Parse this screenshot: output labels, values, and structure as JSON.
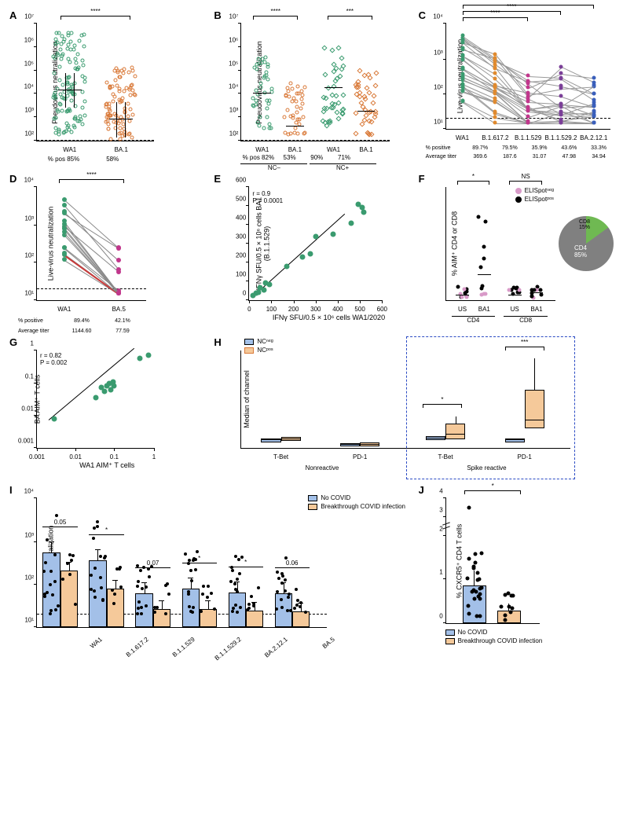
{
  "colors": {
    "green": "#3a9b6f",
    "orange": "#d97938",
    "red": "#c83a3a",
    "magenta": "#c1378c",
    "purple": "#7b3f98",
    "blue": "#3a5fbb",
    "darkorange": "#e08a2e",
    "lightblue": "#a3c0e8",
    "lightorange": "#f5c99a",
    "black": "#000000",
    "grey": "#888888",
    "piegreen": "#6fb952",
    "piegrey": "#808080",
    "pinkdot": "#d89ac8"
  },
  "panelA": {
    "label": "A",
    "ylabel": "Pseudovirus neutralization",
    "yticks": [
      "10²",
      "10³",
      "10⁴",
      "10⁵",
      "10⁶",
      "10⁷"
    ],
    "dashed_y": "10²",
    "groups": [
      "WA1",
      "BA.1"
    ],
    "bottom_line1": "% pos 85%",
    "bottom_line2": "58%",
    "sig": "****"
  },
  "panelB": {
    "label": "B",
    "ylabel": "Pseudovirus neutralization",
    "yticks": [
      "10²",
      "10³",
      "10⁴",
      "10⁵",
      "10⁶",
      "10⁷"
    ],
    "groups": [
      "WA1",
      "BA.1",
      "WA1",
      "BA.1"
    ],
    "bottom_labels": [
      "% pos 82%",
      "53%",
      "90%",
      "71%"
    ],
    "group_brackets": [
      "NC–",
      "NC+"
    ],
    "sig": [
      "****",
      "***"
    ]
  },
  "panelC": {
    "label": "C",
    "ylabel": "Live-virus neutralization",
    "yticks": [
      "10¹",
      "10²",
      "10³",
      "10⁴"
    ],
    "groups": [
      "WA1",
      "B.1.617.2",
      "B.1.1.529",
      "B.1.1.529.2",
      "BA.2.12.1"
    ],
    "bottom_pos_label": "% positive",
    "bottom_pos": [
      "89.7%",
      "79.5%",
      "35.9%",
      "43.6%",
      "33.3%"
    ],
    "bottom_titer_label": "Average titer",
    "bottom_titer": [
      "369.6",
      "187.6",
      "31.07",
      "47.98",
      "34.94"
    ],
    "sig": "****"
  },
  "panelD": {
    "label": "D",
    "ylabel": "Live-virus neutralization",
    "yticks": [
      "10¹",
      "10²",
      "10³",
      "10⁴"
    ],
    "groups": [
      "WA1",
      "BA.5"
    ],
    "bottom_pos_label": "% positive",
    "bottom_pos": [
      "89.4%",
      "42.1%"
    ],
    "bottom_titer_label": "Average titer",
    "bottom_titer": [
      "1144.60",
      "77.59"
    ],
    "sig": "****"
  },
  "panelE": {
    "label": "E",
    "ylabel_line1": "IFNγ SFU/0.5 × 10⁶ cells BA1",
    "ylabel_line2": "(B.1.1.529)",
    "xlabel": "IFNγ SFU/0.5 × 10⁶ cells WA1/2020",
    "yticks": [
      "0",
      "100",
      "200",
      "300",
      "400",
      "500",
      "600"
    ],
    "xticks": [
      "0",
      "100",
      "200",
      "300",
      "400",
      "500",
      "600"
    ],
    "stats": "r = 0.9\nP = 0.0001"
  },
  "panelF": {
    "label": "F",
    "ylabel": "% AIM⁺ CD4 or CD8",
    "groups": [
      "US",
      "BA1",
      "US",
      "BA1"
    ],
    "brackets": [
      "CD4",
      "CD8"
    ],
    "legend": [
      {
        "label": "ELISpotⁿᵉᵍ",
        "color": "pinkdot"
      },
      {
        "label": "ELISpotᵖᵒˢ",
        "color": "black"
      }
    ],
    "sig": [
      "*",
      "NS"
    ],
    "pie": {
      "cd8_label": "CD8\n15%",
      "cd4_label": "CD4\n85%"
    }
  },
  "panelG": {
    "label": "G",
    "ylabel": "BA AIM⁺ T cells",
    "xlabel": "WA1 AIM⁺ T cells",
    "yticks": [
      "0.001",
      "0.01",
      "0.1",
      "1"
    ],
    "xticks": [
      "0.001",
      "0.01",
      "0.1",
      "1"
    ],
    "stats": "r = 0.82\nP = 0.002"
  },
  "panelH": {
    "label": "H",
    "ylabel": "Median of channel",
    "groups": [
      "T-Bet",
      "PD-1",
      "T-Bet",
      "PD-1"
    ],
    "brackets": [
      "Nonreactive",
      "Spike reactive"
    ],
    "legend": [
      {
        "label": "NCⁿᵉᵍ",
        "color": "lightblue"
      },
      {
        "label": "NCᵖᵒˢ",
        "color": "lightorange"
      }
    ],
    "sig": [
      "*",
      "***"
    ]
  },
  "panelI": {
    "label": "I",
    "ylabel": "Live-virus neutralization",
    "yticks": [
      "10¹",
      "10²",
      "10³",
      "10⁴"
    ],
    "groups": [
      "WA1",
      "B.1.617.2",
      "B.1.1.529",
      "B.1.1.529.2",
      "BA.2.12.1",
      "BA.5"
    ],
    "legend": [
      {
        "label": "No COVID",
        "color": "lightblue"
      },
      {
        "label": "Breakthrough COVID infection",
        "color": "lightorange"
      }
    ],
    "sig": [
      "0.05",
      "*",
      "0.07",
      "*",
      "*",
      "0.06"
    ]
  },
  "panelJ": {
    "label": "J",
    "ylabel": "% CXCR5⁺ CD4 T cells",
    "yticks": [
      "0",
      "1",
      "2",
      "3",
      "4"
    ],
    "legend": [
      {
        "label": "No COVID",
        "color": "lightblue"
      },
      {
        "label": "Breakthrough COVID infection",
        "color": "lightorange"
      }
    ],
    "sig": "*"
  }
}
